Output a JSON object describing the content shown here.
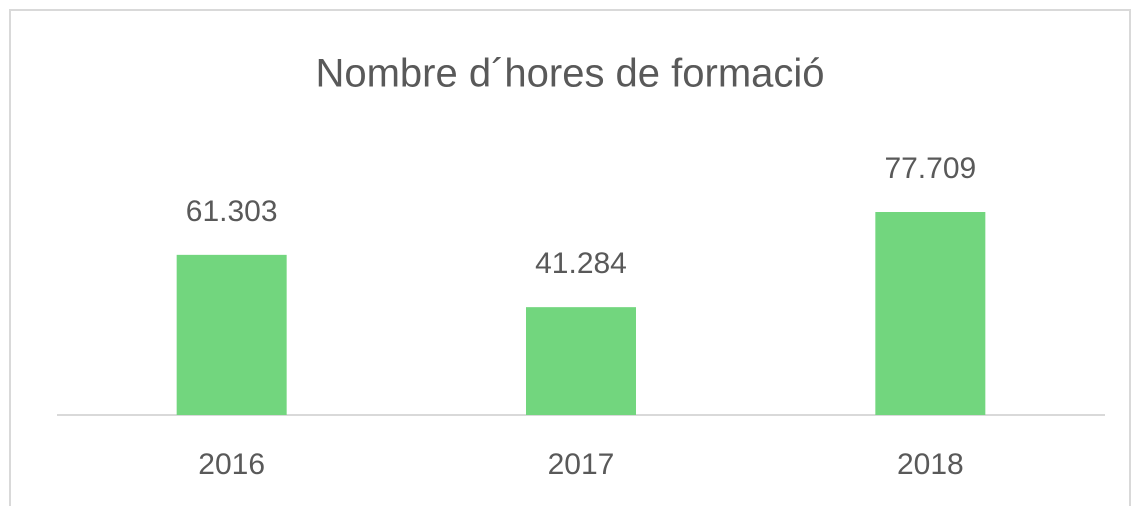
{
  "chart_data": {
    "type": "bar",
    "title": "Nombre d´hores de formació",
    "categories": [
      "2016",
      "2017",
      "2018"
    ],
    "values": [
      61303,
      41284,
      77709
    ],
    "value_labels": [
      "61.303",
      "41.284",
      "77.709"
    ],
    "color": "#72d67e"
  }
}
